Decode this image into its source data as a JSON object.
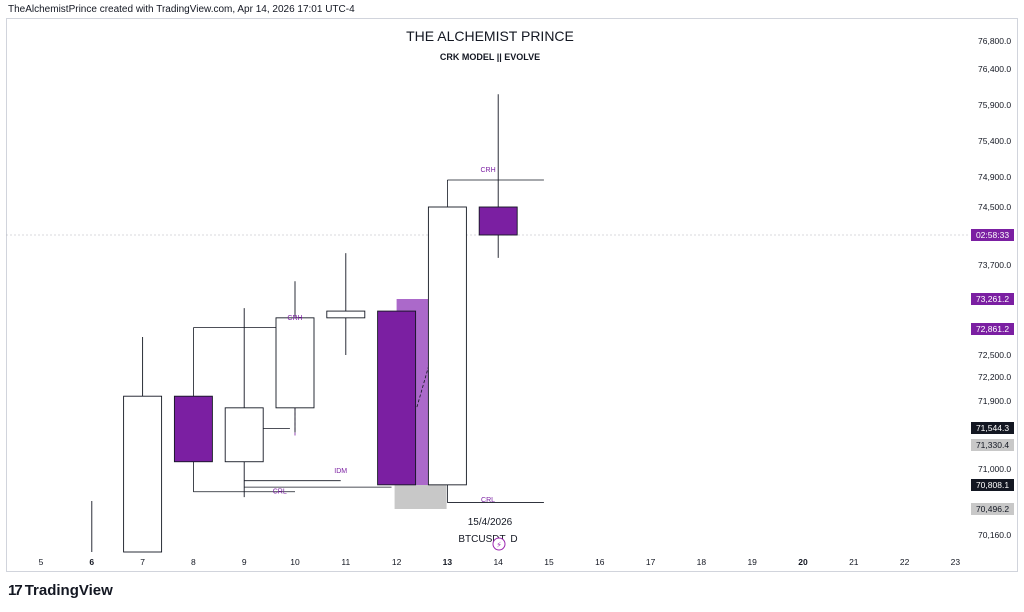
{
  "header": {
    "credit": "TheAlchemistPrince created with TradingView.com, Apr 14, 2026 17:01 UTC-4"
  },
  "logo": {
    "mark": "17",
    "text": "TradingView"
  },
  "colors": {
    "purple": "#7b1fa2",
    "purple_light": "#9c4fc1",
    "grey_box": "#c8c8c8",
    "line": "#131722"
  },
  "chart_data": {
    "type": "candlestick",
    "title": "THE ALCHEMIST PRINCE",
    "subtitle": "CRK MODEL || EVOLVE",
    "symbol_label": "BTCUSDT",
    "symbol_suffix": "D",
    "date_label": "15/4/2026",
    "x_ticks": [
      "5",
      "6",
      "7",
      "8",
      "9",
      "10",
      "11",
      "12",
      "13",
      "14",
      "15",
      "16",
      "17",
      "18",
      "19",
      "20",
      "21",
      "22",
      "23"
    ],
    "x_bold": [
      "6",
      "13",
      "20"
    ],
    "y_ticks": [
      76800,
      76400,
      75900,
      75400,
      74900,
      74500,
      73700,
      72500,
      72200,
      71900,
      71000,
      70160
    ],
    "y_tick_labels": [
      "76,800.0",
      "76,400.0",
      "75,900.0",
      "75,400.0",
      "74,900.0",
      "74,500.0",
      "73,700.0",
      "72,500.0",
      "72,200.0",
      "71,900.0",
      "71,000.0",
      "70,160.0"
    ],
    "candles": [
      {
        "day": 6,
        "open": 70160,
        "high": 70600,
        "low": 70160,
        "close": 70160,
        "fill": "none"
      },
      {
        "day": 7,
        "open": 70160,
        "high": 72750,
        "low": 70160,
        "close": 71960,
        "fill": "hollow"
      },
      {
        "day": 8,
        "open": 71960,
        "high": 71960,
        "low": 71100,
        "close": 71100,
        "fill": "purple"
      },
      {
        "day": 9,
        "open": 71100,
        "high": 73140,
        "low": 70650,
        "close": 71810,
        "fill": "hollow"
      },
      {
        "day": 10,
        "open": 71810,
        "high": 73490,
        "low": 71490,
        "close": 73010,
        "fill": "hollow"
      },
      {
        "day": 11,
        "open": 73010,
        "high": 73850,
        "low": 72500,
        "close": 73100,
        "fill": "hollow"
      },
      {
        "day": 12,
        "open": 73100,
        "high": 73100,
        "low": 70810,
        "close": 70810,
        "fill": "purple"
      },
      {
        "day": 13,
        "open": 70810,
        "high": 74500,
        "low": 70810,
        "close": 74500,
        "fill": "hollow"
      },
      {
        "day": 14,
        "open": 74500,
        "high": 76050,
        "low": 73790,
        "close": 74080,
        "fill": "purple"
      }
    ],
    "price_labels": [
      {
        "text": "02:58:33",
        "value": 74080,
        "style": "purple"
      },
      {
        "text": "73,261.2",
        "value": 73261.2,
        "style": "purple"
      },
      {
        "text": "72,861.2",
        "value": 72861.2,
        "style": "purple"
      },
      {
        "text": "71,544.3",
        "value": 71544.3,
        "style": "black"
      },
      {
        "text": "71,330.4",
        "value": 71330.4,
        "style": "grey"
      },
      {
        "text": "70,808.1",
        "value": 70808.1,
        "style": "black"
      },
      {
        "text": "70,496.2",
        "value": 70496.2,
        "style": "grey"
      }
    ],
    "annotations": [
      {
        "text": "CRH",
        "day": 10,
        "value": 72980
      },
      {
        "text": "IDM",
        "day": 10.9,
        "value": 70950
      },
      {
        "text": "CRL",
        "day": 9.7,
        "value": 70700
      },
      {
        "text": "CRH",
        "day": 13.8,
        "value": 74970
      },
      {
        "text": "CRL",
        "day": 13.8,
        "value": 70590
      }
    ]
  }
}
